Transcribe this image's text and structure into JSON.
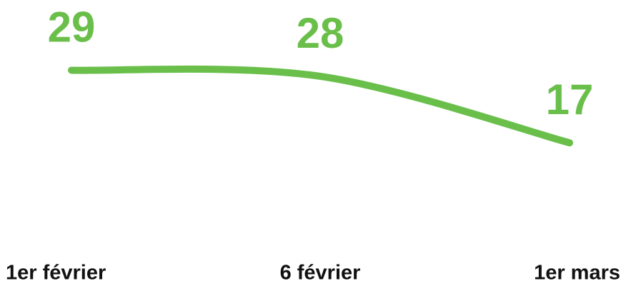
{
  "chart_data": {
    "type": "line",
    "categories": [
      "1er février",
      "6 février",
      "1er mars"
    ],
    "values": [
      29,
      28,
      17
    ],
    "color": "#6abf4b",
    "ylim": [
      5,
      30
    ]
  }
}
